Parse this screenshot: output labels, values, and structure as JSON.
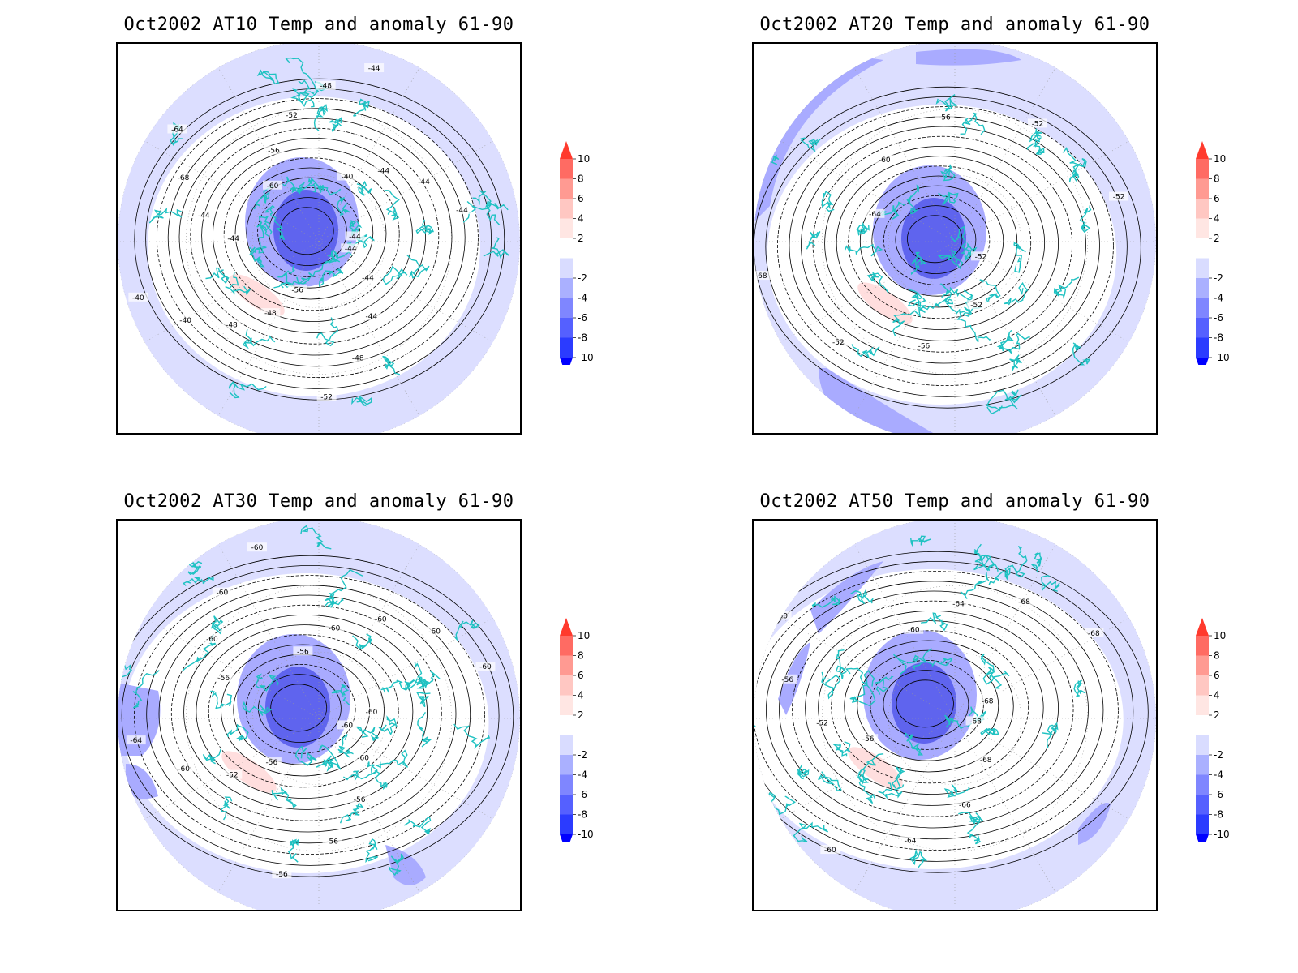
{
  "panels": [
    {
      "id": "at10",
      "title": "Oct2002 AT10 Temp and anomaly 61-90",
      "contour_labels": [
        "-44",
        "-44",
        "-44",
        "-48",
        "-52",
        "-56",
        "-48",
        "-48",
        "-40",
        "-40",
        "-44",
        "-44",
        "-68",
        "-64",
        "-60",
        "-56",
        "-52",
        "-48",
        "-44",
        "-40",
        "-44",
        "-44",
        "-44",
        "-44"
      ],
      "anomaly_regions": [
        {
          "level": -6,
          "note": "cold pole centre"
        },
        {
          "level": 2,
          "note": "warm patch"
        }
      ]
    },
    {
      "id": "at20",
      "title": "Oct2002 AT20 Temp and anomaly 61-90",
      "contour_labels": [
        "-52",
        "-52",
        "-56",
        "-52",
        "-68",
        "-64",
        "-60",
        "-56",
        "-52",
        "-52"
      ],
      "anomaly_regions": [
        {
          "level": -6,
          "note": "cold pole centre"
        },
        {
          "level": 2,
          "note": "warm patch"
        }
      ]
    },
    {
      "id": "at30",
      "title": "Oct2002 AT30 Temp and anomaly 61-90",
      "contour_labels": [
        "-60",
        "-60",
        "-56",
        "-56",
        "-56",
        "-56",
        "-52",
        "-60",
        "-64",
        "-60",
        "-56",
        "-60",
        "-60",
        "-60",
        "-56",
        "-60",
        "-60",
        "-60",
        "-60",
        "-60"
      ],
      "anomaly_regions": [
        {
          "level": -6,
          "note": "cold pole centre"
        },
        {
          "level": 2,
          "note": "warm patch"
        }
      ]
    },
    {
      "id": "at50",
      "title": "Oct2002 AT50 Temp and anomaly 61-90",
      "contour_labels": [
        "-68",
        "-68",
        "-66",
        "-64",
        "-60",
        "-56",
        "-52",
        "-56",
        "-60",
        "-56",
        "-60",
        "-64",
        "-68",
        "-68",
        "-68"
      ],
      "anomaly_regions": [
        {
          "level": -6,
          "note": "cold pole centre"
        },
        {
          "level": 2,
          "note": "warm patch"
        }
      ]
    }
  ],
  "colorbar": {
    "levels": [
      "10",
      "8",
      "6",
      "4",
      "2",
      "-2",
      "-4",
      "-6",
      "-8",
      "-10"
    ],
    "colors": [
      "#ff3a2d",
      "#ff6b63",
      "#ff9a92",
      "#ffc7c2",
      "#ffe6e3",
      "#ffffff",
      "#d9dcff",
      "#aab0ff",
      "#7f86ff",
      "#5560ff",
      "#2b3bff",
      "#0000ff"
    ]
  },
  "colors": {
    "coast": "#1fc2c2",
    "contour": "#000000",
    "cold_light": "#dcdeff",
    "cold_mid": "#a9abff",
    "cold_deep": "#5f64ee",
    "warm_light": "#ffdede"
  }
}
